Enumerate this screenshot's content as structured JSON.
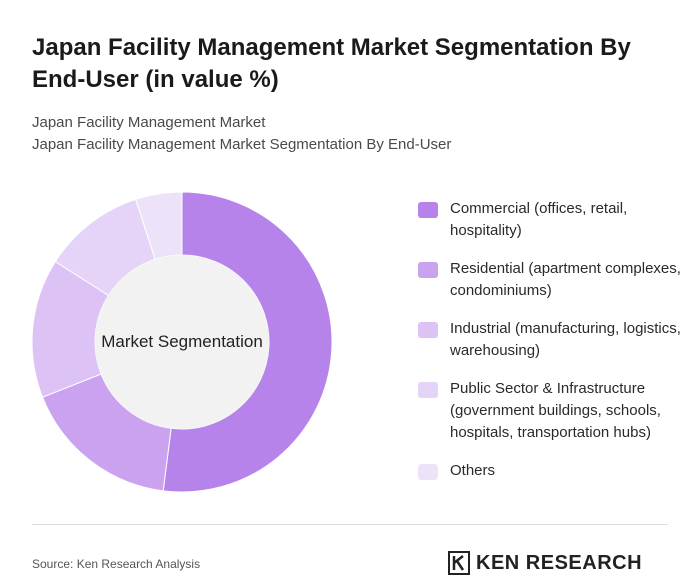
{
  "header": {
    "title": "Japan Facility Management Market Segmentation By End-User (in value %)",
    "subtitle1": "Japan Facility Management Market",
    "subtitle2": "Japan Facility Management Market Segmentation By End-User"
  },
  "chart_data": {
    "type": "pie",
    "center_label": "Market Segmentation",
    "categories": [
      "Commercial (offices, retail, hospitality)",
      "Residential (apartment complexes, condominiums)",
      "Industrial (manufacturing, logistics, warehousing)",
      "Public Sector & Infrastructure (government buildings, schools, hospitals, transportation hubs)",
      "Others"
    ],
    "values": [
      52,
      17,
      15,
      11,
      5
    ],
    "colors": [
      "#b583ea",
      "#cba2f0",
      "#dcc2f5",
      "#e6d3f8",
      "#ede3f9"
    ],
    "legend_position": "right"
  },
  "footer": {
    "source": "Source: Ken Research Analysis",
    "brand": "KEN RESEARCH"
  }
}
